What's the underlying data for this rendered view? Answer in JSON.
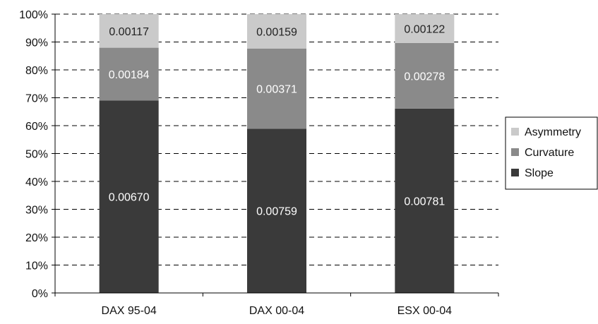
{
  "chart_data": {
    "type": "bar",
    "stacked": true,
    "normalized_percent": true,
    "categories": [
      "DAX 95-04",
      "DAX 00-04",
      "ESX 00-04"
    ],
    "series": [
      {
        "name": "Slope",
        "values": [
          0.0067,
          0.00759,
          0.00781
        ],
        "labels": [
          "0.00670",
          "0.00759",
          "0.00781"
        ],
        "color": "#3a3a3a",
        "label_color": "#ffffff"
      },
      {
        "name": "Curvature",
        "values": [
          0.00184,
          0.00371,
          0.00278
        ],
        "labels": [
          "0.00184",
          "0.00371",
          "0.00278"
        ],
        "color": "#8a8a8a",
        "label_color": "#ffffff"
      },
      {
        "name": "Asymmetry",
        "values": [
          0.00117,
          0.00159,
          0.00122
        ],
        "labels": [
          "0.00117",
          "0.00159",
          "0.00122"
        ],
        "color": "#cacaca",
        "label_color": "#222222"
      }
    ],
    "y_ticks": [
      "0%",
      "10%",
      "20%",
      "30%",
      "40%",
      "50%",
      "60%",
      "70%",
      "80%",
      "90%",
      "100%"
    ],
    "ylim": [
      0,
      100
    ],
    "grid": true,
    "grid_style": "dashed",
    "legend": {
      "placement": "right",
      "order": [
        "Asymmetry",
        "Curvature",
        "Slope"
      ]
    },
    "title": "",
    "xlabel": "",
    "ylabel": ""
  },
  "colors": {
    "axis": "#000000",
    "grid": "#000000",
    "text": "#111111"
  }
}
